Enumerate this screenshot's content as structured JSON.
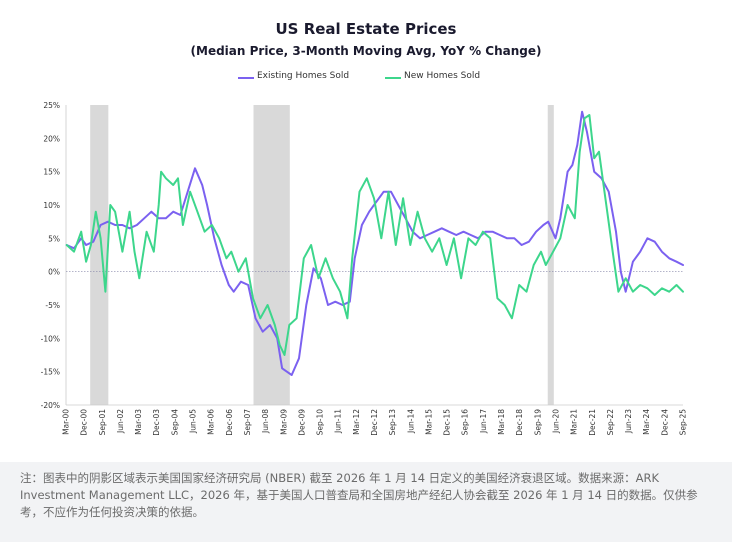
{
  "chart_data": {
    "type": "line",
    "title": "US Real Estate Prices",
    "subtitle": "(Median Price, 3-Month Moving Avg, YoY % Change)",
    "ylim": [
      -20,
      25
    ],
    "yticks": [
      "25%",
      "20%",
      "15%",
      "10%",
      "5%",
      "0%",
      "-5%",
      "-10%",
      "-15%",
      "-20%"
    ],
    "ytick_values": [
      25,
      20,
      15,
      10,
      5,
      0,
      -5,
      -10,
      -15,
      -20
    ],
    "xlim": [
      2000.17,
      2025.67
    ],
    "xtick_labels": [
      "Mar-00",
      "Dec-00",
      "Sep-01",
      "Jun-02",
      "Mar-03",
      "Dec-03",
      "Sep-04",
      "Jun-05",
      "Mar-06",
      "Dec-06",
      "Sep-07",
      "Jun-08",
      "Mar-09",
      "Dec-09",
      "Sep-10",
      "Jun-11",
      "Mar-12",
      "Dec-12",
      "Sep-13",
      "Jun-14",
      "Mar-15",
      "Dec-15",
      "Sep-16",
      "Jun-17",
      "Mar-18",
      "Dec-18",
      "Sep-19",
      "Jun-20",
      "Mar-21",
      "Dec-21",
      "Sep-22",
      "Jun-23",
      "Mar-24",
      "Dec-24",
      "Sep-25"
    ],
    "recessions": [
      [
        2001.17,
        2001.92
      ],
      [
        2007.92,
        2009.42
      ],
      [
        2020.08,
        2020.33
      ]
    ],
    "legend_position": "top",
    "series": [
      {
        "name": "Existing Homes Sold",
        "color": "#7b61f0",
        "x": [
          2000.2,
          2000.5,
          2000.8,
          2001.0,
          2001.3,
          2001.6,
          2001.9,
          2002.2,
          2002.5,
          2002.8,
          2003.1,
          2003.4,
          2003.7,
          2004.0,
          2004.3,
          2004.6,
          2004.9,
          2005.2,
          2005.5,
          2005.8,
          2006.0,
          2006.3,
          2006.6,
          2006.9,
          2007.1,
          2007.4,
          2007.7,
          2008.0,
          2008.3,
          2008.6,
          2008.9,
          2009.1,
          2009.3,
          2009.5,
          2009.8,
          2010.1,
          2010.4,
          2010.7,
          2011.0,
          2011.3,
          2011.6,
          2011.9,
          2012.1,
          2012.4,
          2012.7,
          2013.0,
          2013.3,
          2013.6,
          2013.9,
          2014.2,
          2014.5,
          2014.8,
          2015.1,
          2015.4,
          2015.7,
          2016.0,
          2016.3,
          2016.6,
          2016.9,
          2017.2,
          2017.5,
          2017.8,
          2018.1,
          2018.4,
          2018.7,
          2019.0,
          2019.3,
          2019.6,
          2019.9,
          2020.1,
          2020.4,
          2020.6,
          2020.9,
          2021.1,
          2021.3,
          2021.5,
          2021.7,
          2022.0,
          2022.3,
          2022.6,
          2022.9,
          2023.1,
          2023.3,
          2023.6,
          2023.9,
          2024.2,
          2024.5,
          2024.8,
          2025.1,
          2025.4,
          2025.67
        ],
        "y": [
          4.0,
          3.5,
          5.0,
          4.0,
          4.5,
          7.0,
          7.5,
          7.0,
          7.0,
          6.5,
          7.0,
          8.0,
          9.0,
          8.0,
          8.0,
          9.0,
          8.5,
          12.0,
          15.5,
          13.0,
          10.0,
          5.0,
          1.0,
          -2.0,
          -3.0,
          -1.5,
          -2.0,
          -7.0,
          -9.0,
          -8.0,
          -10.0,
          -14.5,
          -15.0,
          -15.5,
          -13.0,
          -5.0,
          0.5,
          -1.0,
          -5.0,
          -4.5,
          -5.0,
          -4.5,
          2.0,
          7.0,
          9.0,
          10.5,
          12.0,
          12.0,
          10.0,
          8.0,
          6.0,
          5.0,
          5.5,
          6.0,
          6.5,
          6.0,
          5.5,
          6.0,
          5.5,
          5.0,
          6.0,
          6.0,
          5.5,
          5.0,
          5.0,
          4.0,
          4.5,
          6.0,
          7.0,
          7.5,
          5.0,
          8.0,
          15.0,
          16.0,
          19.0,
          24.0,
          21.0,
          15.0,
          14.0,
          12.0,
          6.0,
          0.0,
          -3.0,
          1.5,
          3.0,
          5.0,
          4.5,
          3.0,
          2.0,
          1.5,
          1.0
        ]
      },
      {
        "name": "New Homes Sold",
        "color": "#3dd68c",
        "x": [
          2000.2,
          2000.5,
          2000.8,
          2001.0,
          2001.2,
          2001.4,
          2001.6,
          2001.8,
          2002.0,
          2002.2,
          2002.5,
          2002.8,
          2003.0,
          2003.2,
          2003.5,
          2003.8,
          2004.0,
          2004.1,
          2004.3,
          2004.6,
          2004.8,
          2005.0,
          2005.3,
          2005.6,
          2005.9,
          2006.2,
          2006.5,
          2006.8,
          2007.0,
          2007.3,
          2007.6,
          2007.9,
          2008.2,
          2008.5,
          2008.8,
          2009.0,
          2009.2,
          2009.4,
          2009.7,
          2010.0,
          2010.3,
          2010.6,
          2010.9,
          2011.2,
          2011.5,
          2011.8,
          2012.0,
          2012.3,
          2012.6,
          2012.9,
          2013.2,
          2013.5,
          2013.8,
          2014.1,
          2014.4,
          2014.7,
          2015.0,
          2015.3,
          2015.6,
          2015.9,
          2016.2,
          2016.5,
          2016.8,
          2017.1,
          2017.4,
          2017.7,
          2018.0,
          2018.3,
          2018.6,
          2018.9,
          2019.2,
          2019.5,
          2019.8,
          2020.0,
          2020.3,
          2020.6,
          2020.9,
          2021.2,
          2021.4,
          2021.6,
          2021.8,
          2022.0,
          2022.2,
          2022.5,
          2022.8,
          2023.0,
          2023.3,
          2023.6,
          2023.9,
          2024.2,
          2024.5,
          2024.8,
          2025.1,
          2025.4,
          2025.67
        ],
        "y": [
          4.0,
          3.0,
          6.0,
          1.5,
          4.0,
          9.0,
          5.0,
          -3.0,
          10.0,
          9.0,
          3.0,
          9.0,
          3.0,
          -1.0,
          6.0,
          3.0,
          10.0,
          15.0,
          14.0,
          13.0,
          14.0,
          7.0,
          12.0,
          9.0,
          6.0,
          7.0,
          5.0,
          2.0,
          3.0,
          0.0,
          2.0,
          -4.0,
          -7.0,
          -5.0,
          -8.0,
          -11.0,
          -12.5,
          -8.0,
          -7.0,
          2.0,
          4.0,
          -1.0,
          2.0,
          -1.0,
          -3.0,
          -7.0,
          2.0,
          12.0,
          14.0,
          11.0,
          5.0,
          12.0,
          4.0,
          11.0,
          4.0,
          9.0,
          5.0,
          3.0,
          5.0,
          1.0,
          5.0,
          -1.0,
          5.0,
          4.0,
          6.0,
          5.0,
          -4.0,
          -5.0,
          -7.0,
          -2.0,
          -3.0,
          1.0,
          3.0,
          1.0,
          3.0,
          5.0,
          10.0,
          8.0,
          18.0,
          23.0,
          23.5,
          17.0,
          18.0,
          10.0,
          2.0,
          -3.0,
          -1.0,
          -3.0,
          -2.0,
          -2.5,
          -3.5,
          -2.5,
          -3.0,
          -2.0,
          -3.0
        ]
      }
    ]
  },
  "note": "注：图表中的阴影区域表示美国国家经济研究局 (NBER) 截至 2026 年 1 月 14 日定义的美国经济衰退区域。数据来源：ARK Investment Management LLC，2026 年，基于美国人口普查局和全国房地产经纪人协会截至 2026 年 1 月 14 日的数据。仅供参考，不应作为任何投资决策的依据。"
}
